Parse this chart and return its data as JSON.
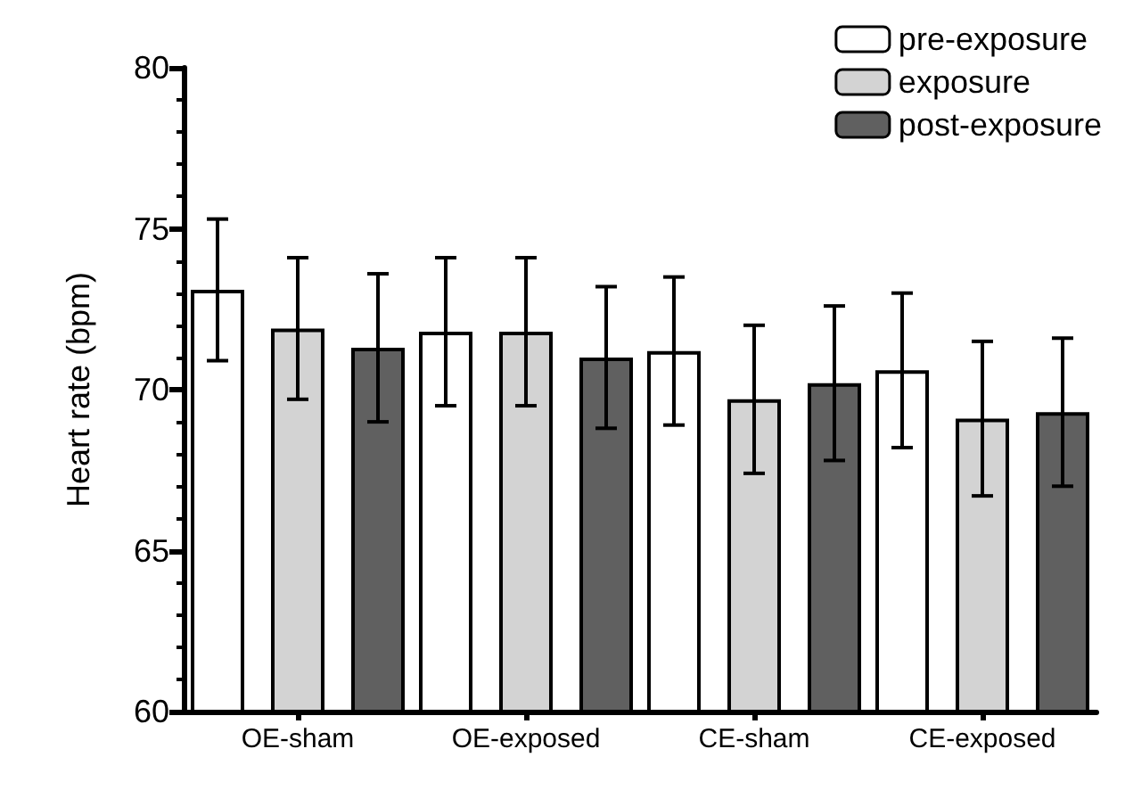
{
  "chart_data": {
    "type": "bar",
    "ylabel": "Heart rate (bpm)",
    "categories": [
      "OE-sham",
      "OE-exposed",
      "CE-sham",
      "CE-exposed"
    ],
    "series": [
      {
        "name": "pre-exposure",
        "color": "#ffffff",
        "values": [
          73.1,
          71.8,
          71.2,
          70.6
        ],
        "errors": [
          2.2,
          2.3,
          2.3,
          2.4
        ]
      },
      {
        "name": "exposure",
        "color": "#d3d3d3",
        "values": [
          71.9,
          71.8,
          69.7,
          69.1
        ],
        "errors": [
          2.2,
          2.3,
          2.3,
          2.4
        ]
      },
      {
        "name": "post-exposure",
        "color": "#606060",
        "values": [
          71.3,
          71.0,
          70.2,
          69.3
        ],
        "errors": [
          2.3,
          2.2,
          2.4,
          2.3
        ]
      }
    ],
    "ylim": [
      60,
      80
    ],
    "yticks": [
      60,
      65,
      70,
      75,
      80
    ],
    "grid": false,
    "legend": "top right"
  }
}
